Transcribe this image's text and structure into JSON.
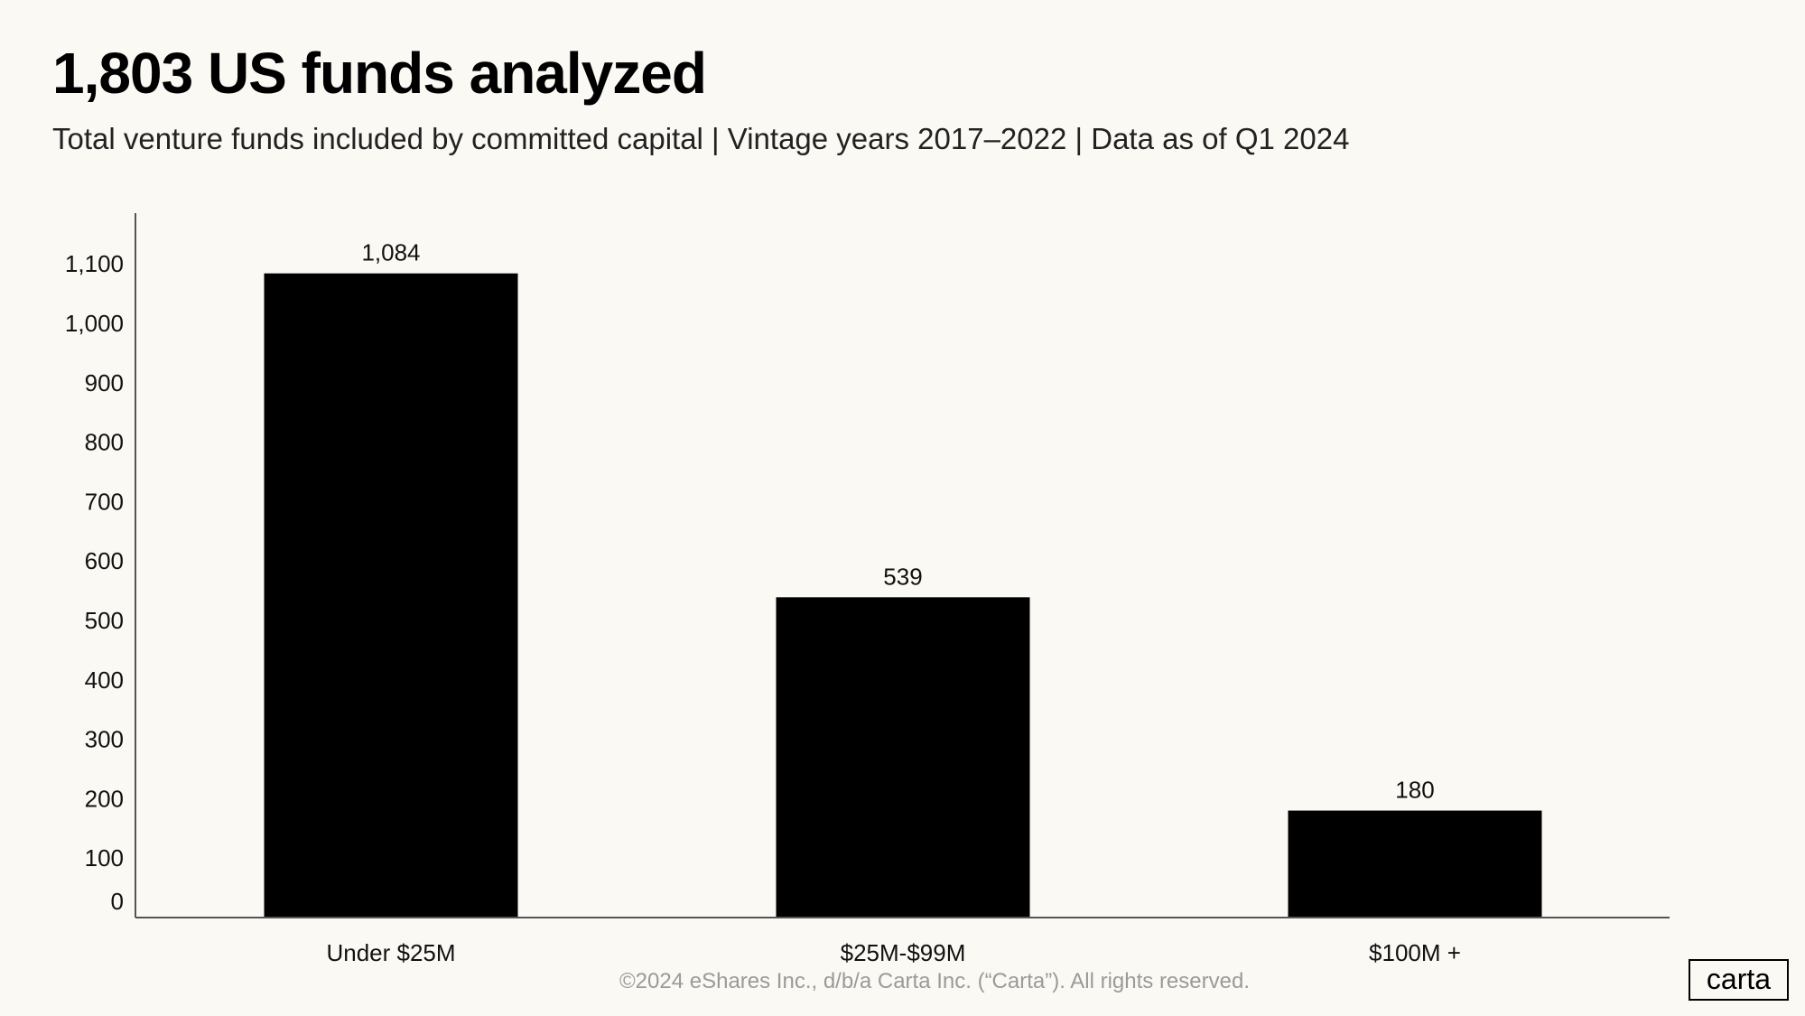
{
  "header": {
    "title": "1,803 US funds analyzed",
    "subtitle": "Total venture funds included by committed capital | Vintage years 2017–2022 | Data as of Q1 2024"
  },
  "chart_data": {
    "type": "bar",
    "categories": [
      "Under $25M",
      "$25M-$99M",
      "$100M +"
    ],
    "values": [
      1084,
      539,
      180
    ],
    "data_labels": [
      "1,084",
      "539",
      "180"
    ],
    "yticks": [
      0,
      100,
      200,
      300,
      400,
      500,
      600,
      700,
      800,
      900,
      1000,
      1100
    ],
    "ytick_labels": [
      "0",
      "100",
      "200",
      "300",
      "400",
      "500",
      "600",
      "700",
      "800",
      "900",
      "1,000",
      "1,100"
    ],
    "ylim": [
      0,
      1180
    ],
    "grid": false,
    "bar_color": "#000000",
    "xlabel": "",
    "ylabel": ""
  },
  "footer": {
    "copyright": "©2024 eShares Inc., d/b/a Carta Inc. (“Carta”). All rights reserved.",
    "logo": "carta"
  },
  "colors": {
    "background": "#fbf9f4",
    "text": "#000000",
    "footer": "#9a9a9a"
  }
}
